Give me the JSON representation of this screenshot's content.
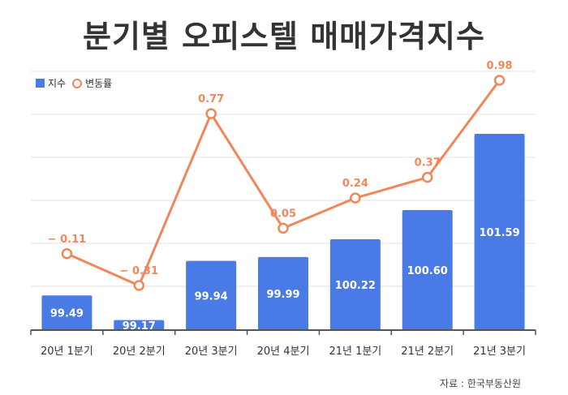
{
  "chart_data": {
    "type": "bar",
    "title": "분기별 오피스텔 매매가격지수",
    "categories": [
      "20년 1분기",
      "20년 2분기",
      "20년 3분기",
      "20년 4분기",
      "21년 1분기",
      "21년 2분기",
      "21년 3분기"
    ],
    "series": [
      {
        "name": "지수",
        "type": "bar",
        "values": [
          99.49,
          99.17,
          99.94,
          99.99,
          100.22,
          100.6,
          101.59
        ],
        "labels": [
          "99.49",
          "99.17",
          "99.94",
          "99.99",
          "100.22",
          "100.60",
          "101.59"
        ]
      },
      {
        "name": "변동률",
        "type": "line",
        "values": [
          -0.11,
          -0.31,
          0.77,
          0.05,
          0.24,
          0.37,
          0.98
        ],
        "labels": [
          "− 0.11",
          "− 0.31",
          "0.77",
          "0.05",
          "0.24",
          "0.37",
          "0.98"
        ]
      }
    ],
    "grid": true,
    "legend_position": "top-left",
    "source": "자료 : 한국부동산원"
  },
  "colors": {
    "bar": "#4a7ae6",
    "line": "#f0875a",
    "grid": "#e2e2e2",
    "axis": "#555555",
    "title": "#333333"
  }
}
